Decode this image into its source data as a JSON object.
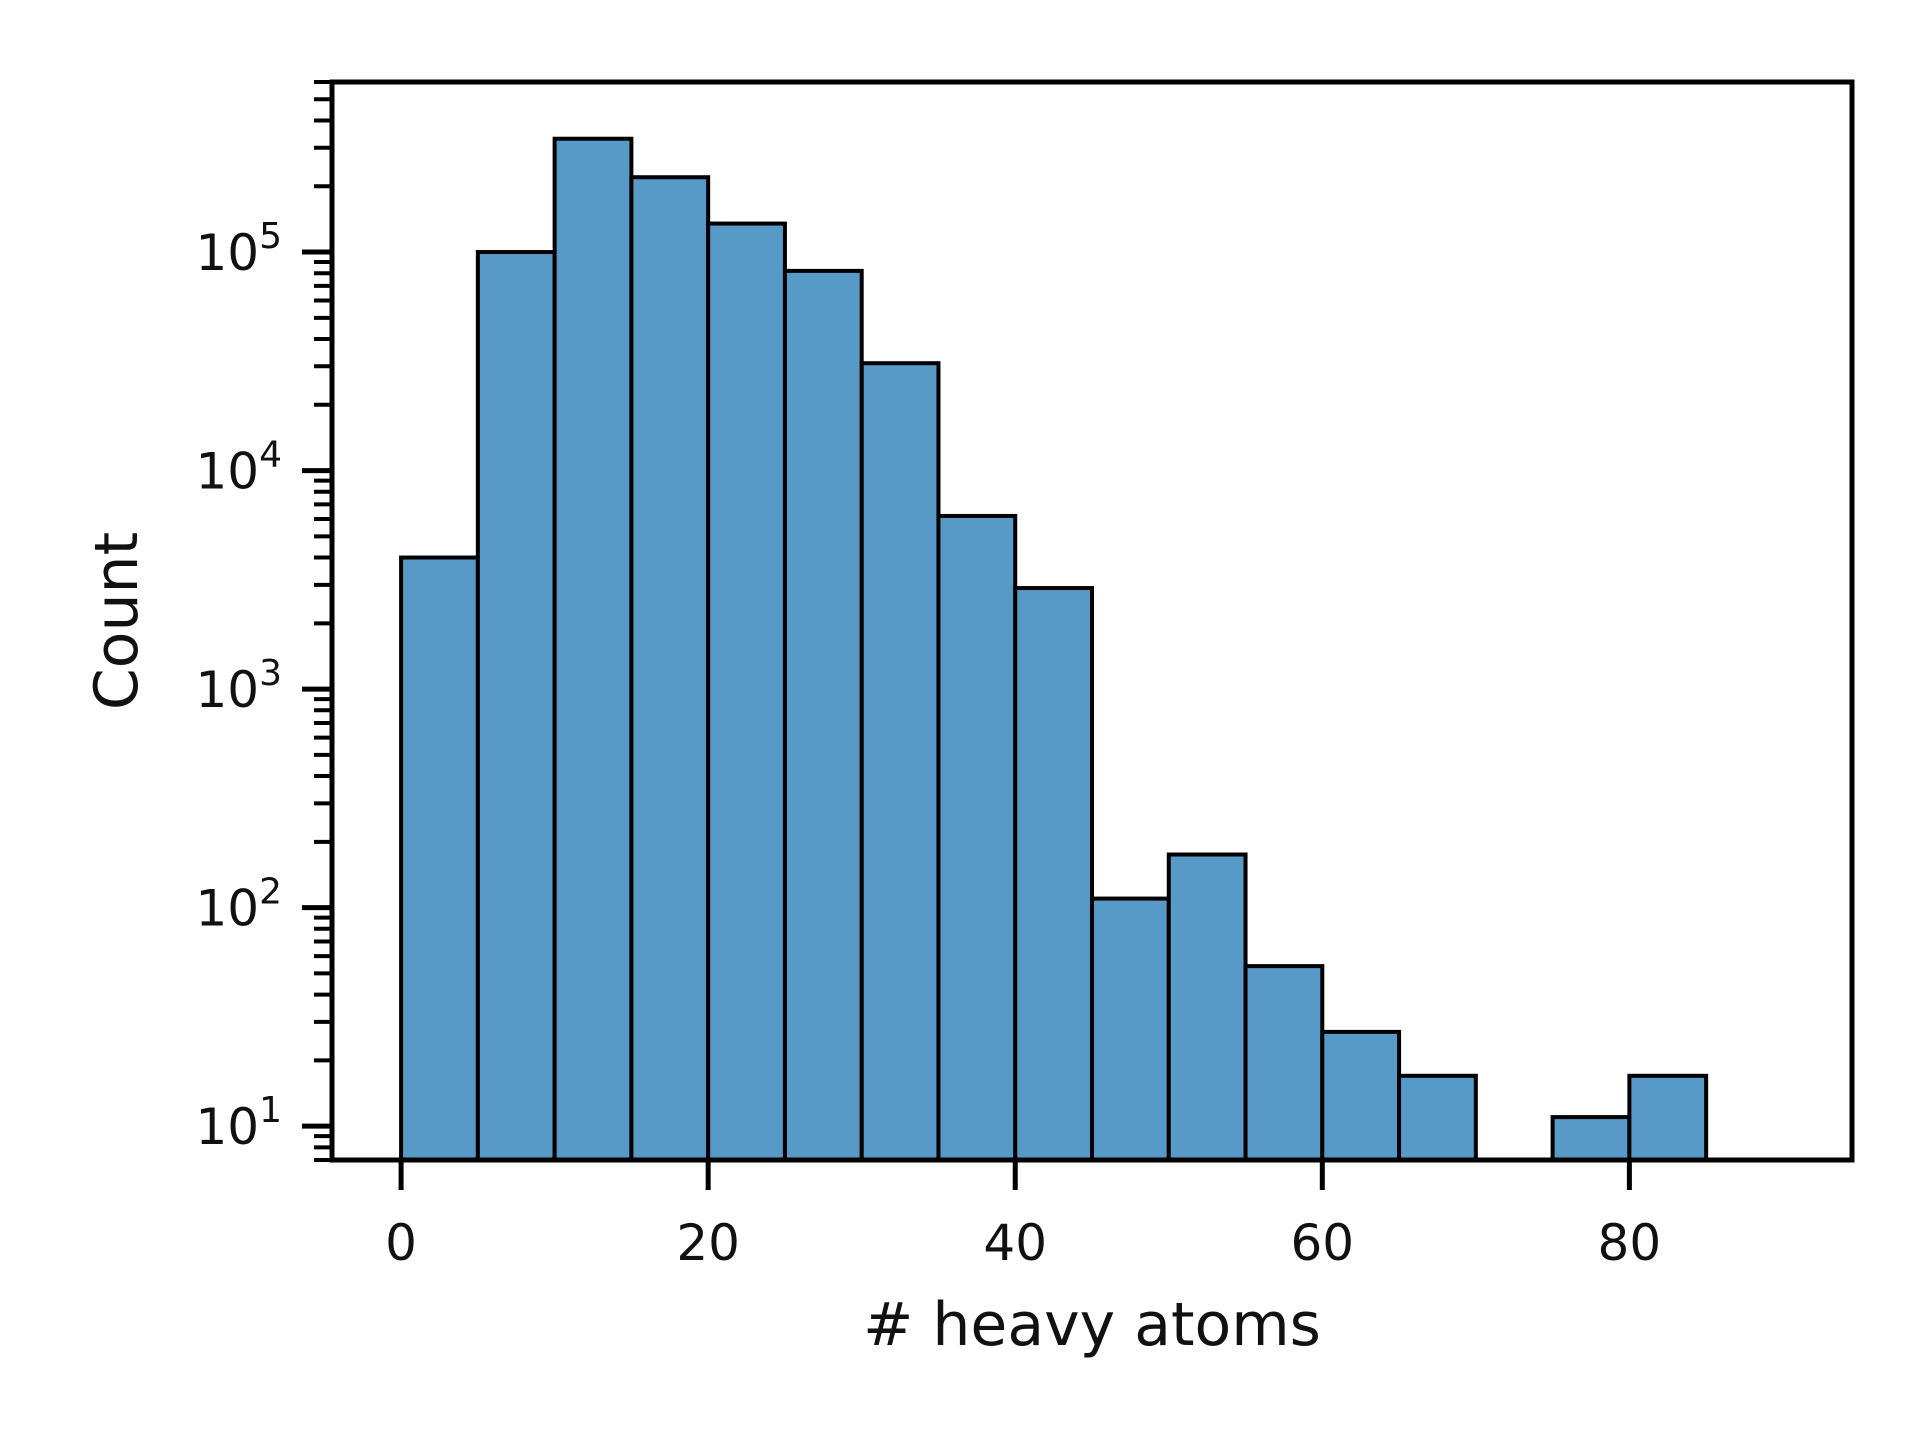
{
  "chart_data": {
    "type": "bar",
    "title": "",
    "xlabel": "# heavy atoms",
    "ylabel": "Count",
    "y_scale": "log",
    "ylim": [
      7,
      600000
    ],
    "xlim": [
      -4.5,
      94.5
    ],
    "bin_width": 5,
    "bins": [
      {
        "x0": 0,
        "x1": 5,
        "count": 4000
      },
      {
        "x0": 5,
        "x1": 10,
        "count": 100000
      },
      {
        "x0": 10,
        "x1": 15,
        "count": 330000
      },
      {
        "x0": 15,
        "x1": 20,
        "count": 220000
      },
      {
        "x0": 20,
        "x1": 25,
        "count": 135000
      },
      {
        "x0": 25,
        "x1": 30,
        "count": 82000
      },
      {
        "x0": 30,
        "x1": 35,
        "count": 31000
      },
      {
        "x0": 35,
        "x1": 40,
        "count": 6200
      },
      {
        "x0": 40,
        "x1": 45,
        "count": 2900
      },
      {
        "x0": 45,
        "x1": 50,
        "count": 110
      },
      {
        "x0": 50,
        "x1": 55,
        "count": 175
      },
      {
        "x0": 55,
        "x1": 60,
        "count": 54
      },
      {
        "x0": 60,
        "x1": 65,
        "count": 27
      },
      {
        "x0": 65,
        "x1": 70,
        "count": 17
      },
      {
        "x0": 75,
        "x1": 80,
        "count": 11
      },
      {
        "x0": 80,
        "x1": 85,
        "count": 17
      }
    ],
    "x_ticks": [
      0,
      20,
      40,
      60,
      80
    ],
    "y_ticks": [
      {
        "value": 10,
        "base": "10",
        "exp": "1"
      },
      {
        "value": 100,
        "base": "10",
        "exp": "2"
      },
      {
        "value": 1000,
        "base": "10",
        "exp": "3"
      },
      {
        "value": 10000,
        "base": "10",
        "exp": "4"
      },
      {
        "value": 100000,
        "base": "10",
        "exp": "5"
      }
    ],
    "bar_color": "#5799c7",
    "edge_color": "#000000",
    "grid": false,
    "legend": "none"
  }
}
